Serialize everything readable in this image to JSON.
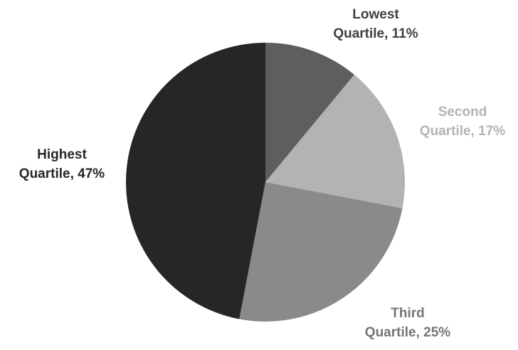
{
  "chart_data": {
    "type": "pie",
    "title": "",
    "slices": [
      {
        "label_lines": [
          "Lowest",
          "Quartile, 11%"
        ],
        "value": 11,
        "color": "#5e5e5e",
        "label_color": "#3f3f3f"
      },
      {
        "label_lines": [
          "Second",
          "Quartile, 17%"
        ],
        "value": 17,
        "color": "#b3b3b3",
        "label_color": "#b3b3b3"
      },
      {
        "label_lines": [
          "Third",
          "Quartile, 25%"
        ],
        "value": 25,
        "color": "#8a8a8a",
        "label_color": "#757575"
      },
      {
        "label_lines": [
          "Highest",
          "Quartile, 47%"
        ],
        "value": 47,
        "color": "#262626",
        "label_color": "#262626"
      }
    ],
    "start_angle_deg": 0,
    "direction": "clockwise",
    "legend": "none",
    "labels": "outside"
  }
}
